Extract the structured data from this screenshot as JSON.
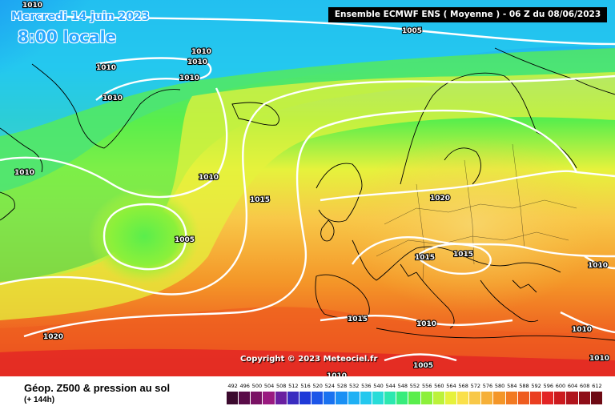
{
  "header": {
    "date": "Mercredi 14 juin 2023",
    "time": "8:00 locale",
    "model": "Ensemble ECMWF ENS  ( Moyenne )  -  06 Z du 08/06/2023"
  },
  "copyright": "Copyright © 2023 Meteociel.fr",
  "legend": {
    "title": "Géop. Z500 & pression au sol",
    "subtitle": "(+ 144h)",
    "scale_values": [
      "492",
      "496",
      "500",
      "504",
      "508",
      "512",
      "516",
      "520",
      "524",
      "528",
      "532",
      "536",
      "540",
      "544",
      "548",
      "552",
      "556",
      "560",
      "564",
      "568",
      "572",
      "576",
      "580",
      "584",
      "588",
      "592",
      "596",
      "600",
      "604",
      "608",
      "612"
    ],
    "scale_colors": [
      "#3b0a2e",
      "#5a0c48",
      "#7a1264",
      "#9a1a80",
      "#6a1fa0",
      "#3a2cc0",
      "#1f3ad8",
      "#1c55e8",
      "#1a72f0",
      "#1a90f4",
      "#1fb0f4",
      "#24c8ee",
      "#28dcd8",
      "#2ce8b0",
      "#38ec7c",
      "#5aee4c",
      "#8cf03a",
      "#bcf23a",
      "#e6f23c",
      "#fae04a",
      "#f8c848",
      "#f6b038",
      "#f49628",
      "#f27a22",
      "#ee5c20",
      "#ea3e20",
      "#e22424",
      "#cc1a1e",
      "#b0141c",
      "#8e0e18",
      "#6e0a14"
    ]
  },
  "isobars": [
    "1010",
    "1010",
    "1010",
    "1010",
    "1010",
    "1010",
    "1005",
    "1010",
    "1015",
    "1010",
    "1005",
    "1020",
    "1015",
    "1015",
    "1010",
    "1015",
    "1010",
    "1010",
    "1005",
    "1020",
    "1010",
    "1010"
  ],
  "colors": {
    "ocean_north": "#1a78f0",
    "ocean_mid": "#3ae06e",
    "europe_land": "#f8c64a",
    "south": "#f04a30",
    "contour": "#ffffff",
    "coast": "#000000"
  }
}
